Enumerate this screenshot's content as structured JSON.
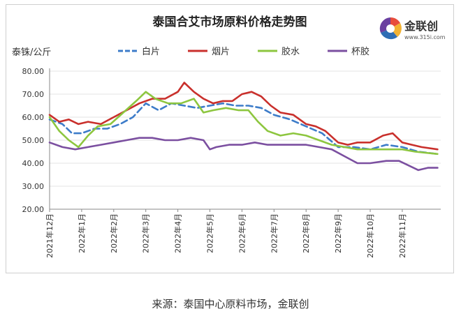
{
  "chart_data": {
    "type": "line",
    "title": "泰国合艾市场原料价格走势图",
    "ylabel": "泰铢/公斤",
    "xlabel": "",
    "ylim": [
      20,
      80
    ],
    "yticks": [
      "20.00",
      "30.00",
      "40.00",
      "50.00",
      "60.00",
      "70.00",
      "80.00"
    ],
    "xticks": [
      {
        "label": "2021年12月",
        "t": 0
      },
      {
        "label": "2022年1月",
        "t": 1
      },
      {
        "label": "2022年2月",
        "t": 2
      },
      {
        "label": "2022年3月",
        "t": 3
      },
      {
        "label": "2022年4月",
        "t": 4
      },
      {
        "label": "2022年5月",
        "t": 5
      },
      {
        "label": "2022年6月",
        "t": 6
      },
      {
        "label": "2022年7月",
        "t": 7
      },
      {
        "label": "2022年8月",
        "t": 8
      },
      {
        "label": "2022年9月",
        "t": 9
      },
      {
        "label": "2022年10月",
        "t": 10
      },
      {
        "label": "2022年11月",
        "t": 11
      }
    ],
    "xlim": [
      0,
      12.2
    ],
    "grid": true,
    "legend": "top",
    "series": [
      {
        "name": "白片",
        "color": "#3d7cc9",
        "dash": "9,5",
        "points": [
          [
            0,
            59
          ],
          [
            0.4,
            57
          ],
          [
            0.7,
            53
          ],
          [
            1,
            53
          ],
          [
            1.4,
            55
          ],
          [
            1.8,
            55
          ],
          [
            2.2,
            57
          ],
          [
            2.6,
            60
          ],
          [
            3,
            66
          ],
          [
            3.4,
            63
          ],
          [
            3.8,
            66
          ],
          [
            4.2,
            65
          ],
          [
            4.6,
            64
          ],
          [
            5,
            65
          ],
          [
            5.4,
            66
          ],
          [
            5.8,
            65
          ],
          [
            6.2,
            65
          ],
          [
            6.6,
            64
          ],
          [
            7,
            61
          ],
          [
            7.5,
            59
          ],
          [
            8,
            56
          ],
          [
            8.5,
            53
          ],
          [
            9,
            47
          ],
          [
            9.5,
            47
          ],
          [
            10,
            46
          ],
          [
            10.5,
            48
          ],
          [
            11,
            47
          ],
          [
            11.5,
            45
          ],
          [
            12.1,
            44
          ]
        ]
      },
      {
        "name": "烟片",
        "color": "#c9302c",
        "dash": "",
        "points": [
          [
            0,
            61
          ],
          [
            0.3,
            58
          ],
          [
            0.6,
            59
          ],
          [
            0.9,
            57
          ],
          [
            1.2,
            58
          ],
          [
            1.6,
            57
          ],
          [
            2,
            60
          ],
          [
            2.4,
            63
          ],
          [
            2.8,
            66
          ],
          [
            3.2,
            68
          ],
          [
            3.6,
            68
          ],
          [
            4,
            71
          ],
          [
            4.2,
            75
          ],
          [
            4.5,
            71
          ],
          [
            4.8,
            68
          ],
          [
            5.1,
            66
          ],
          [
            5.4,
            67
          ],
          [
            5.7,
            67
          ],
          [
            6,
            70
          ],
          [
            6.3,
            71
          ],
          [
            6.6,
            69
          ],
          [
            6.9,
            65
          ],
          [
            7.2,
            62
          ],
          [
            7.6,
            61
          ],
          [
            8,
            57
          ],
          [
            8.3,
            56
          ],
          [
            8.6,
            54
          ],
          [
            9,
            49
          ],
          [
            9.3,
            48
          ],
          [
            9.6,
            49
          ],
          [
            10,
            49
          ],
          [
            10.4,
            52
          ],
          [
            10.7,
            53
          ],
          [
            11,
            49
          ],
          [
            11.3,
            48
          ],
          [
            11.6,
            47
          ],
          [
            12.1,
            46
          ]
        ]
      },
      {
        "name": "胶水",
        "color": "#8dc63f",
        "dash": "",
        "points": [
          [
            0,
            60
          ],
          [
            0.3,
            54
          ],
          [
            0.6,
            50
          ],
          [
            0.9,
            47
          ],
          [
            1.2,
            52
          ],
          [
            1.5,
            56
          ],
          [
            1.9,
            57
          ],
          [
            2.3,
            62
          ],
          [
            2.7,
            67
          ],
          [
            3,
            71
          ],
          [
            3.3,
            68
          ],
          [
            3.7,
            66
          ],
          [
            4.1,
            66
          ],
          [
            4.5,
            68
          ],
          [
            4.8,
            62
          ],
          [
            5.1,
            63
          ],
          [
            5.5,
            64
          ],
          [
            5.9,
            63
          ],
          [
            6.2,
            63
          ],
          [
            6.5,
            58
          ],
          [
            6.8,
            54
          ],
          [
            7.2,
            52
          ],
          [
            7.6,
            53
          ],
          [
            8,
            52
          ],
          [
            8.4,
            50
          ],
          [
            8.8,
            48
          ],
          [
            9.2,
            47
          ],
          [
            9.6,
            46
          ],
          [
            10,
            46
          ],
          [
            10.5,
            46
          ],
          [
            11,
            46
          ],
          [
            11.4,
            45
          ],
          [
            12.1,
            44
          ]
        ]
      },
      {
        "name": "杯胶",
        "color": "#7b4fa0",
        "dash": "",
        "points": [
          [
            0,
            49
          ],
          [
            0.4,
            47
          ],
          [
            0.8,
            46
          ],
          [
            1.2,
            47
          ],
          [
            1.6,
            48
          ],
          [
            2,
            49
          ],
          [
            2.4,
            50
          ],
          [
            2.8,
            51
          ],
          [
            3.2,
            51
          ],
          [
            3.6,
            50
          ],
          [
            4,
            50
          ],
          [
            4.4,
            51
          ],
          [
            4.8,
            50
          ],
          [
            5,
            46
          ],
          [
            5.2,
            47
          ],
          [
            5.6,
            48
          ],
          [
            6,
            48
          ],
          [
            6.4,
            49
          ],
          [
            6.8,
            48
          ],
          [
            7.2,
            48
          ],
          [
            7.6,
            48
          ],
          [
            8,
            48
          ],
          [
            8.4,
            47
          ],
          [
            8.8,
            46
          ],
          [
            9.2,
            43
          ],
          [
            9.6,
            40
          ],
          [
            10,
            40
          ],
          [
            10.5,
            41
          ],
          [
            10.9,
            41
          ],
          [
            11.2,
            39
          ],
          [
            11.5,
            37
          ],
          [
            11.8,
            38
          ],
          [
            12.1,
            38
          ]
        ]
      }
    ]
  },
  "logo": {
    "name": "金联创",
    "url": "www.315i.com"
  },
  "caption": "来源：泰国中心原料市场，金联创"
}
